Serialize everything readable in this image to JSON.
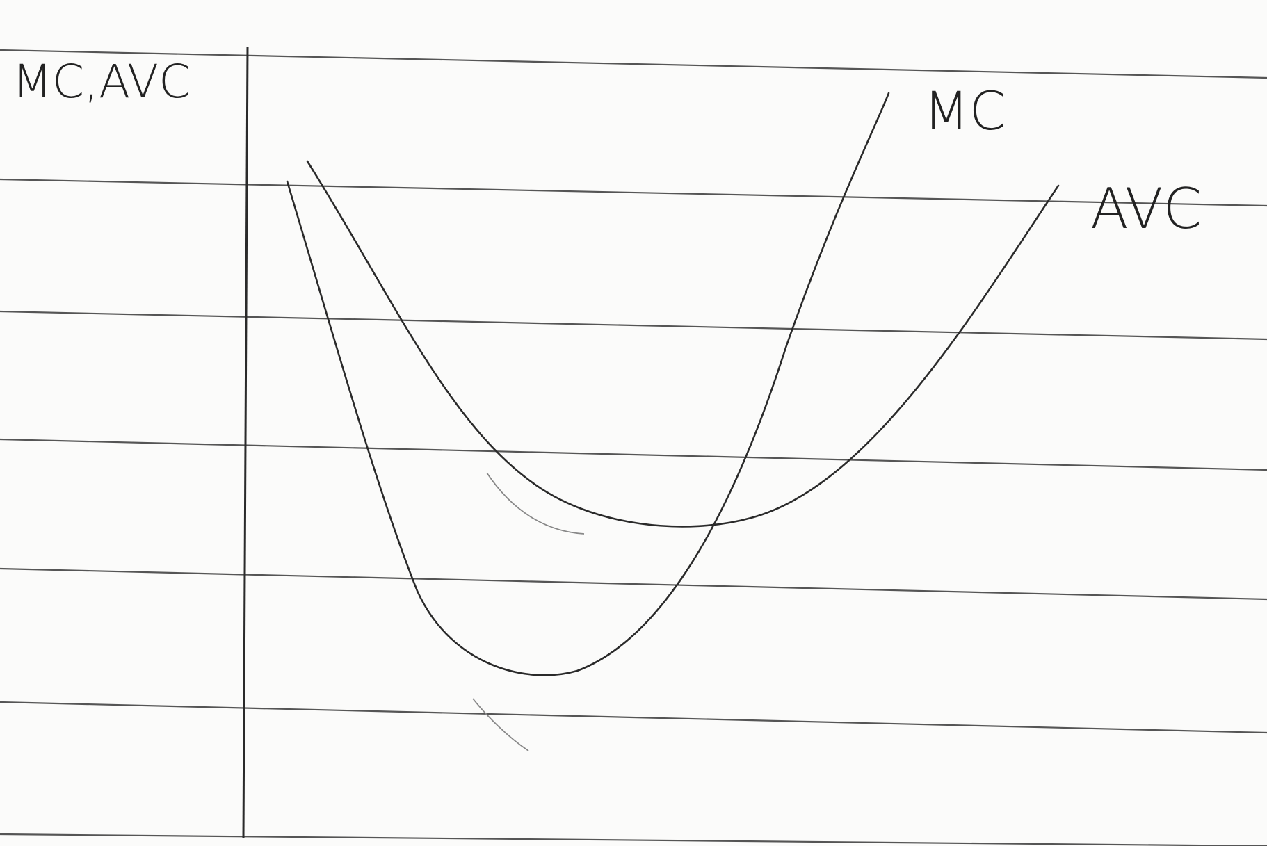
{
  "axis_label": "MC,AVC",
  "curves": [
    {
      "label": "MC"
    },
    {
      "label": "AVC"
    }
  ]
}
